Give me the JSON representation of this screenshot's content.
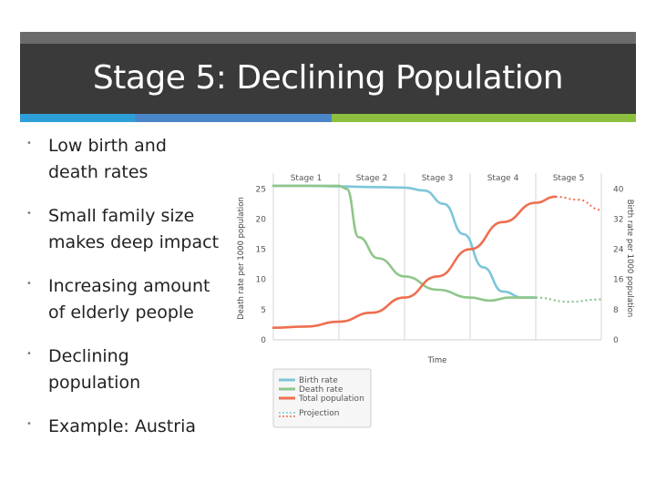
{
  "slide": {
    "title": "Stage 5: Declining Population",
    "bullets": [
      "Low birth and death rates",
      "Small family size makes deep impact",
      "Increasing amount of elderly people",
      "Declining population",
      "Example: Austria"
    ]
  },
  "colors": {
    "title_bg": "#3a3a3a",
    "accent_blue": "#2d9fd8",
    "accent_mid_blue": "#4a86c8",
    "accent_green": "#8dbf3f",
    "birth": "#7cc6d9",
    "death": "#8fc68a",
    "total": "#ee6e4f"
  },
  "chart_data": {
    "type": "line",
    "stages": [
      "Stage 1",
      "Stage 2",
      "Stage 3",
      "Stage 4",
      "Stage 5"
    ],
    "xlabel": "Time",
    "ylabel_left": "Death rate per 1000 population",
    "ylabel_right": "Birth rate per 1000 population",
    "left_ticks": [
      0,
      5,
      10,
      15,
      20,
      25
    ],
    "right_ticks": [
      0,
      8,
      16,
      24,
      32,
      40
    ],
    "xlim": [
      0,
      5
    ],
    "ylim_left": [
      0,
      27
    ],
    "legend": [
      "Birth rate",
      "Death rate",
      "Total population",
      "Projection"
    ],
    "legend_position": "below",
    "series": [
      {
        "name": "Birth rate",
        "x": [
          0,
          0.5,
          1.0,
          1.5,
          2.0,
          2.3,
          2.6,
          2.9,
          3.2,
          3.5,
          3.8,
          4.0
        ],
        "values": [
          25.5,
          25.5,
          25.4,
          25.3,
          25.2,
          24.7,
          22.5,
          17.5,
          12.0,
          8.0,
          7.0,
          7.0
        ],
        "projection": {
          "x": [
            4.0,
            4.5,
            5.0
          ],
          "values": [
            7.0,
            6.3,
            6.7
          ]
        }
      },
      {
        "name": "Death rate",
        "x": [
          0,
          0.5,
          1.0,
          1.12,
          1.3,
          1.6,
          2.0,
          2.5,
          3.0,
          3.3,
          3.6,
          4.0
        ],
        "values": [
          25.5,
          25.5,
          25.5,
          25.0,
          17.0,
          13.5,
          10.5,
          8.3,
          7.0,
          6.5,
          7.0,
          7.0
        ],
        "projection": {
          "x": [
            4.0,
            4.5,
            5.0
          ],
          "values": [
            7.0,
            6.3,
            6.7
          ]
        }
      },
      {
        "name": "Total population",
        "x": [
          0,
          0.5,
          1.0,
          1.5,
          2.0,
          2.5,
          3.0,
          3.5,
          4.0,
          4.3
        ],
        "values": [
          2.0,
          2.2,
          3.0,
          4.5,
          7.0,
          10.5,
          15.0,
          19.5,
          22.7,
          23.7
        ],
        "projection": {
          "x": [
            4.3,
            4.65,
            5.0
          ],
          "values": [
            23.7,
            23.2,
            21.5
          ]
        }
      }
    ]
  }
}
